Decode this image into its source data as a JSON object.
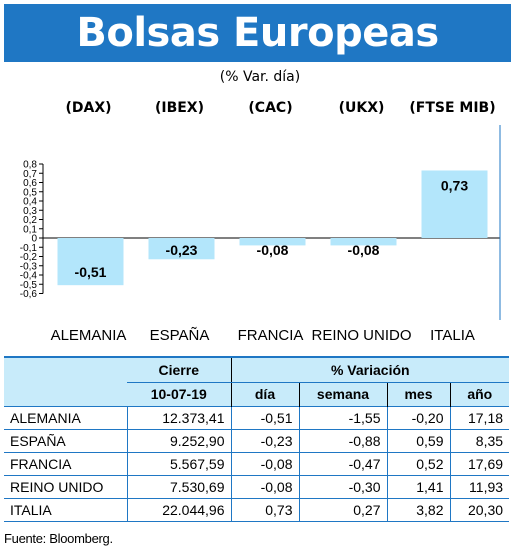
{
  "header": {
    "title": "Bolsas Europeas",
    "subtitle": "(% Var. día)"
  },
  "colors": {
    "title_bg": "#1f77c4",
    "bar_fill": "#b3e6fb",
    "table_header_bg": "#c8ebfa",
    "rule": "#1f77c4"
  },
  "chart_data": {
    "type": "bar",
    "title": "",
    "xlabel": "",
    "ylabel": "",
    "ylim": [
      -0.6,
      0.8
    ],
    "yticks": [
      "0,8",
      "0,7",
      "0,6",
      "0,5",
      "0,4",
      "0,3",
      "0,2",
      "0,1",
      "0",
      "-0,1",
      "-0,2",
      "-0,3",
      "-0,4",
      "-0,5",
      "-0,6"
    ],
    "ytick_values": [
      0.8,
      0.7,
      0.6,
      0.5,
      0.4,
      0.3,
      0.2,
      0.1,
      0,
      -0.1,
      -0.2,
      -0.3,
      -0.4,
      -0.5,
      -0.6
    ],
    "index_labels": [
      "(DAX)",
      "(IBEX)",
      "(CAC)",
      "(UKX)",
      "(FTSE MIB)"
    ],
    "categories": [
      "ALEMANIA",
      "ESPAÑA",
      "FRANCIA",
      "REINO UNIDO",
      "ITALIA"
    ],
    "values": [
      -0.51,
      -0.23,
      -0.08,
      -0.08,
      0.73
    ],
    "data_labels": [
      "-0,51",
      "-0,23",
      "-0,08",
      "-0,08",
      "0,73"
    ],
    "grid": false,
    "legend": "none"
  },
  "table": {
    "header_cierre": "Cierre",
    "header_variacion": "% Variación",
    "header_date": "10-07-19",
    "header_cols": [
      "día",
      "semana",
      "mes",
      "año"
    ],
    "rows": [
      {
        "name": "ALEMANIA",
        "cierre": "12.373,41",
        "dia": "-0,51",
        "semana": "-1,55",
        "mes": "-0,20",
        "anio": "17,18"
      },
      {
        "name": "ESPAÑA",
        "cierre": "9.252,90",
        "dia": "-0,23",
        "semana": "-0,88",
        "mes": "0,59",
        "anio": "8,35"
      },
      {
        "name": "FRANCIA",
        "cierre": "5.567,59",
        "dia": "-0,08",
        "semana": "-0,47",
        "mes": "0,52",
        "anio": "17,69"
      },
      {
        "name": "REINO UNIDO",
        "cierre": "7.530,69",
        "dia": "-0,08",
        "semana": "-0,30",
        "mes": "1,41",
        "anio": "11,93"
      },
      {
        "name": "ITALIA",
        "cierre": "22.044,96",
        "dia": "0,73",
        "semana": "0,27",
        "mes": "3,82",
        "anio": "20,30"
      }
    ]
  },
  "footer": {
    "source": "Fuente: Bloomberg."
  }
}
